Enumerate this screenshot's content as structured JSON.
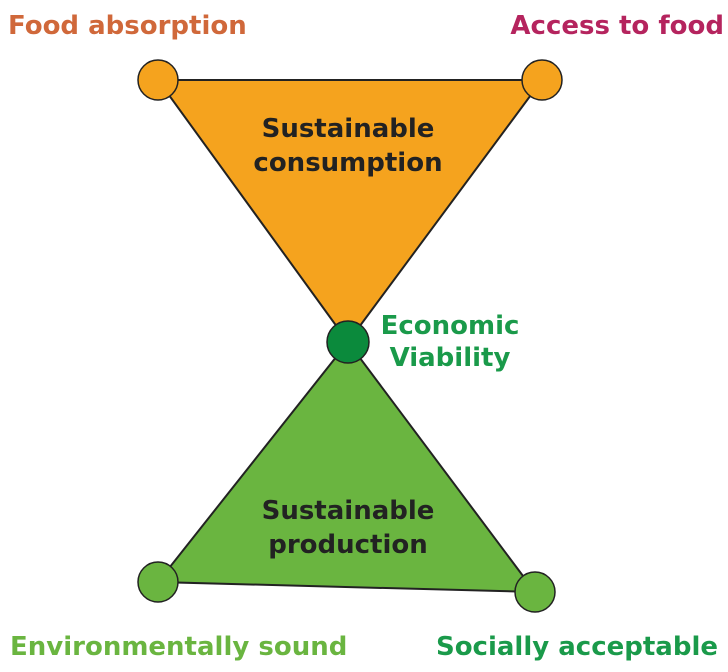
{
  "nodes": [
    {
      "label": "Food absorption"
    },
    {
      "label": "Access to food"
    },
    {
      "label": "Economic Viability"
    },
    {
      "label": "Environmentally sound"
    },
    {
      "label": "Socially acceptable"
    }
  ],
  "triangles": [
    {
      "label": "Sustainable consumption"
    },
    {
      "label": "Sustainable production"
    }
  ]
}
